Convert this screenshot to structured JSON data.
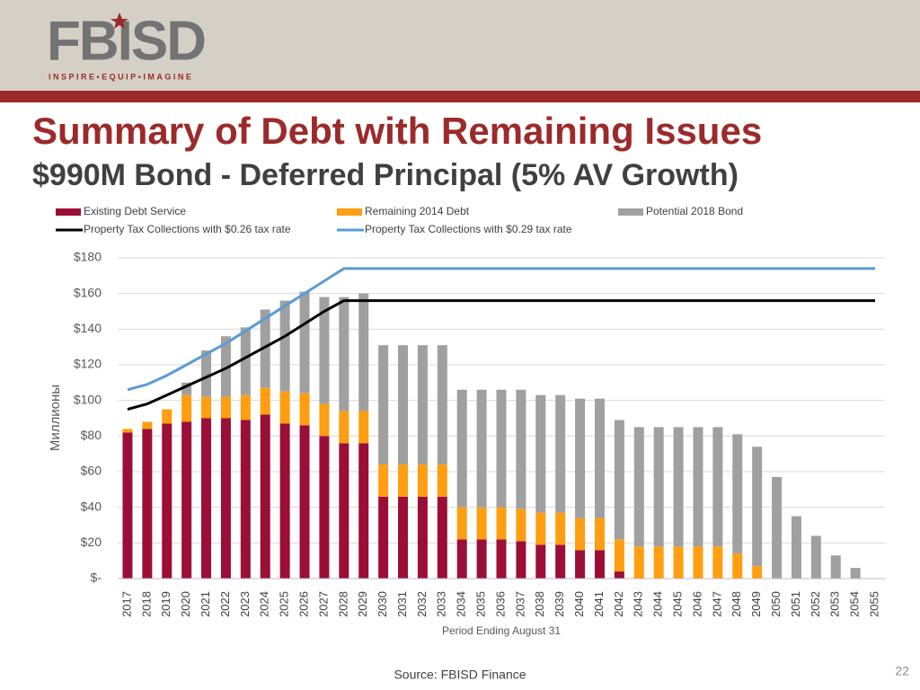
{
  "header": {
    "logo": "FBISD",
    "tagline": "INSPIRE•EQUIP•IMAGINE"
  },
  "chart_data": {
    "type": "bar",
    "title": "Summary of Debt with Remaining Issues",
    "subtitle": "$990M Bond - Deferred Principal (5% AV Growth)",
    "y_label": "Миллионы",
    "x_label": "Period Ending August 31",
    "categories": [
      "2017",
      "2018",
      "2019",
      "2020",
      "2021",
      "2022",
      "2023",
      "2024",
      "2025",
      "2026",
      "2027",
      "2028",
      "2029",
      "2030",
      "2031",
      "2032",
      "2033",
      "2034",
      "2035",
      "2036",
      "2037",
      "2038",
      "2039",
      "2040",
      "2041",
      "2042",
      "2043",
      "2044",
      "2045",
      "2046",
      "2047",
      "2048",
      "2049",
      "2050",
      "2051",
      "2052",
      "2053",
      "2054",
      "2055"
    ],
    "series": [
      {
        "name": "Existing Debt Service",
        "kind": "bar",
        "color": "#9b0e37",
        "values": [
          82,
          84,
          87,
          88,
          90,
          90,
          89,
          92,
          87,
          86,
          80,
          76,
          76,
          46,
          46,
          46,
          46,
          22,
          22,
          22,
          21,
          19,
          19,
          16,
          16,
          4,
          0,
          0,
          0,
          0,
          0,
          0,
          0,
          0,
          0,
          0,
          0,
          0,
          0
        ]
      },
      {
        "name": "Remaining 2014 Debt",
        "kind": "bar",
        "color": "#ff9e10",
        "values": [
          2,
          4,
          8,
          15,
          12,
          12,
          14,
          15,
          18,
          18,
          18,
          18,
          18,
          18,
          18,
          18,
          18,
          18,
          18,
          18,
          18,
          18,
          18,
          18,
          18,
          18,
          18,
          18,
          18,
          18,
          18,
          14,
          7,
          0,
          0,
          0,
          0,
          0,
          0
        ]
      },
      {
        "name": "Potential 2018 Bond",
        "kind": "bar",
        "color": "#a0a0a0",
        "values": [
          0,
          0,
          0,
          7,
          26,
          34,
          38,
          44,
          51,
          57,
          60,
          64,
          66,
          67,
          67,
          67,
          67,
          66,
          66,
          66,
          67,
          66,
          66,
          67,
          67,
          67,
          67,
          67,
          67,
          67,
          67,
          67,
          67,
          57,
          35,
          24,
          13,
          6,
          0
        ]
      },
      {
        "name": "Property Tax Collections with $0.26 tax rate",
        "kind": "line",
        "color": "#000000",
        "values": [
          95,
          98,
          103,
          108,
          113,
          118,
          124,
          130,
          136,
          143,
          150,
          156,
          156,
          156,
          156,
          156,
          156,
          156,
          156,
          156,
          156,
          156,
          156,
          156,
          156,
          156,
          156,
          156,
          156,
          156,
          156,
          156,
          156,
          156,
          156,
          156,
          156,
          156,
          156
        ]
      },
      {
        "name": "Property Tax Collections with $0.29 tax rate",
        "kind": "line",
        "color": "#5b9bd5",
        "values": [
          106,
          109,
          114,
          120,
          126,
          132,
          139,
          146,
          153,
          160,
          167,
          174,
          174,
          174,
          174,
          174,
          174,
          174,
          174,
          174,
          174,
          174,
          174,
          174,
          174,
          174,
          174,
          174,
          174,
          174,
          174,
          174,
          174,
          174,
          174,
          174,
          174,
          174,
          174
        ]
      }
    ],
    "ylim": [
      0,
      180
    ],
    "yticks": [
      {
        "value": 0,
        "label": "$-"
      },
      {
        "value": 20,
        "label": "$20"
      },
      {
        "value": 40,
        "label": "$40"
      },
      {
        "value": 60,
        "label": "$60"
      },
      {
        "value": 80,
        "label": "$80"
      },
      {
        "value": 100,
        "label": "$100"
      },
      {
        "value": 120,
        "label": "$120"
      },
      {
        "value": 140,
        "label": "$140"
      },
      {
        "value": 160,
        "label": "$160"
      },
      {
        "value": 180,
        "label": "$180"
      }
    ],
    "grid": true,
    "legend": "top"
  },
  "footer": {
    "source": "Source: FBISD Finance",
    "page_number": 22
  }
}
